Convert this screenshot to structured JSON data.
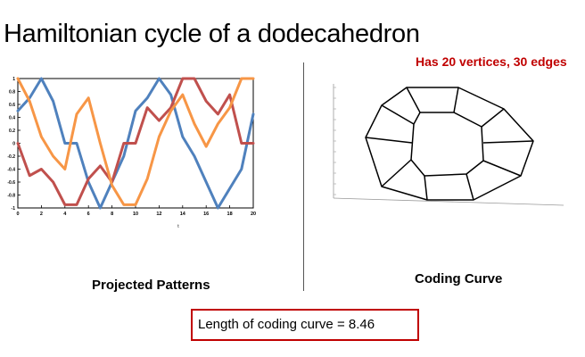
{
  "title": "Hamiltonian cycle of a dodecahedron",
  "subtitle": "Has 20 vertices, 30 edges",
  "left_caption": "Projected Patterns",
  "right_caption": "Coding Curve",
  "length_label": "Length of coding curve  = 8.46",
  "colors": {
    "title_accent": "#c00000",
    "blue": "#4f81bd",
    "red": "#c0504d",
    "orange": "#f79646"
  },
  "chart_data": [
    {
      "type": "line",
      "title": "",
      "xlabel": "t",
      "ylabel": "",
      "xlim": [
        0,
        20
      ],
      "ylim": [
        -1,
        1
      ],
      "xticks": [
        "0",
        "2",
        "4",
        "6",
        "8",
        "10",
        "12",
        "14",
        "16",
        "18",
        "20"
      ],
      "yticks": [
        "1",
        "0.8",
        "0.6",
        "0.4",
        "0.2",
        "0",
        "-0.2",
        "-0.4",
        "-0.6",
        "-0.8",
        "-1"
      ],
      "grid": false,
      "x": [
        0,
        1,
        2,
        3,
        4,
        5,
        6,
        7,
        8,
        9,
        10,
        11,
        12,
        13,
        14,
        15,
        16,
        17,
        18,
        19,
        20
      ],
      "series": [
        {
          "color": "#4f81bd",
          "values": [
            0.5,
            0.7,
            1.0,
            0.65,
            0.0,
            0.0,
            -0.6,
            -1.0,
            -0.6,
            -0.2,
            0.5,
            0.7,
            1.0,
            0.75,
            0.1,
            -0.2,
            -0.6,
            -1.0,
            -0.7,
            -0.4,
            0.45
          ]
        },
        {
          "color": "#c0504d",
          "values": [
            0.0,
            -0.5,
            -0.4,
            -0.6,
            -0.95,
            -0.95,
            -0.55,
            -0.35,
            -0.6,
            0.0,
            0.0,
            0.55,
            0.35,
            0.55,
            1.0,
            1.0,
            0.65,
            0.45,
            0.75,
            0.0,
            0.0
          ]
        },
        {
          "color": "#f79646",
          "values": [
            1.0,
            0.65,
            0.1,
            -0.2,
            -0.4,
            0.45,
            0.7,
            0.0,
            -0.65,
            -0.95,
            -0.95,
            -0.55,
            0.1,
            0.5,
            0.75,
            0.3,
            -0.05,
            0.3,
            0.55,
            1.0,
            1.0
          ]
        }
      ]
    },
    {
      "type": "line",
      "title": "",
      "xlabel": "",
      "ylabel": "",
      "grid": false
    }
  ]
}
